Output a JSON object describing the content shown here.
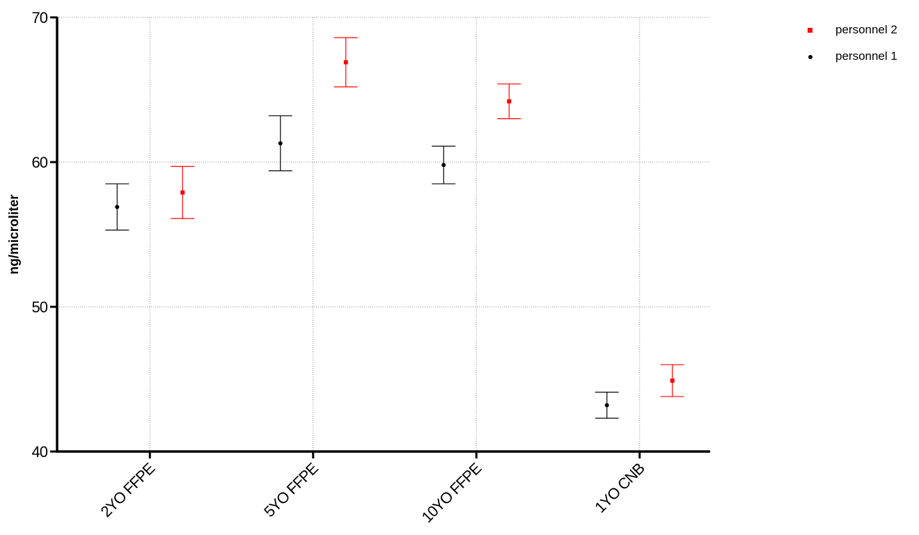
{
  "chart_data": {
    "type": "scatter",
    "title": "",
    "xlabel": "",
    "ylabel": "ng/microliter",
    "ylim": [
      40,
      70
    ],
    "yticks": [
      40,
      50,
      60,
      70
    ],
    "ytick_labels": [
      "40",
      "50",
      "60",
      "70"
    ],
    "categories": [
      "2YO FFPE",
      "5YO FFPE",
      "10YO FFPE",
      "1YO CNB"
    ],
    "grid": true,
    "legend_position": "top-right",
    "error_bars": true,
    "series": [
      {
        "name": "personnel 1",
        "color": "#000000",
        "marker": "circle",
        "values": [
          56.9,
          61.3,
          59.8,
          43.2
        ],
        "error_low": [
          55.3,
          59.4,
          58.5,
          42.3
        ],
        "error_high": [
          58.5,
          63.2,
          61.1,
          44.1
        ]
      },
      {
        "name": "personnel 2",
        "color": "#ff0000",
        "marker": "square",
        "values": [
          57.9,
          66.9,
          64.2,
          44.9
        ],
        "error_low": [
          56.1,
          65.2,
          63.0,
          43.8
        ],
        "error_high": [
          59.7,
          68.6,
          65.4,
          46.0
        ]
      }
    ],
    "legend_order": [
      "personnel 2",
      "personnel 1"
    ]
  }
}
